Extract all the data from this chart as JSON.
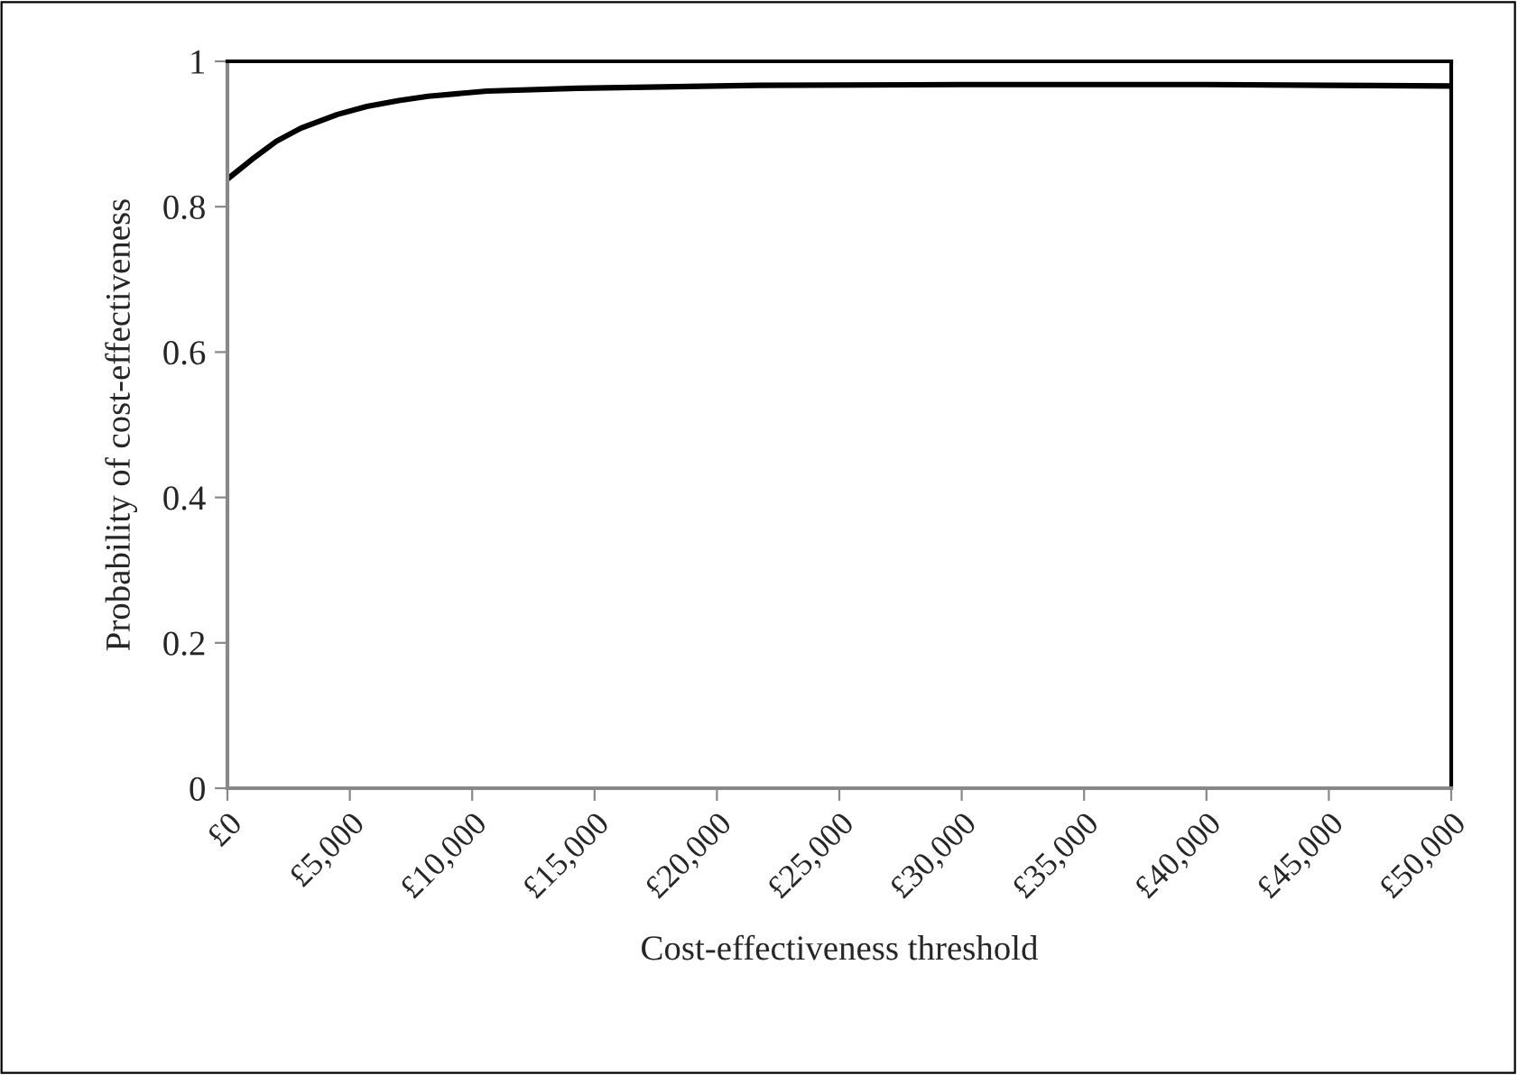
{
  "chart_data": {
    "type": "line",
    "xlabel": "Cost-effectiveness threshold",
    "ylabel": "Probability of cost-effectiveness",
    "x": [
      0,
      1000,
      2000,
      3000,
      4500,
      5700,
      7000,
      8200,
      10600,
      14300,
      21700,
      30000,
      40000,
      45000,
      50000
    ],
    "series": [
      {
        "color": "#000000",
        "values": [
          0.838,
          0.865,
          0.89,
          0.908,
          0.927,
          0.938,
          0.946,
          0.952,
          0.959,
          0.963,
          0.967,
          0.968,
          0.968,
          0.967,
          0.966
        ]
      }
    ],
    "xlim": [
      0,
      50000
    ],
    "xticks": [
      {
        "value": 0,
        "label": "£0"
      },
      {
        "value": 5000,
        "label": "£5,000"
      },
      {
        "value": 10000,
        "label": "£10,000"
      },
      {
        "value": 15000,
        "label": "£15,000"
      },
      {
        "value": 20000,
        "label": "£20,000"
      },
      {
        "value": 25000,
        "label": "£25,000"
      },
      {
        "value": 30000,
        "label": "£30,000"
      },
      {
        "value": 35000,
        "label": "£35,000"
      },
      {
        "value": 40000,
        "label": "£40,000"
      },
      {
        "value": 45000,
        "label": "£45,000"
      },
      {
        "value": 50000,
        "label": "£50,000"
      }
    ],
    "ylim": [
      0,
      1
    ],
    "yticks": [
      0,
      0.2,
      0.4,
      0.6,
      0.8,
      1
    ],
    "grid": false,
    "marker": "none",
    "line_style": "solid"
  }
}
